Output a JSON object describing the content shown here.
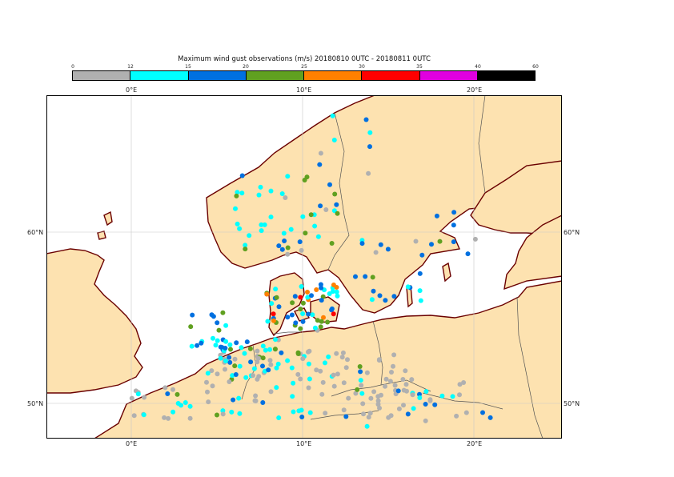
{
  "title": "Maximum wind gust observations (m/s) 20180810 0UTC - 20180811 0UTC",
  "legend": {
    "ticks": [
      "0",
      "12",
      "15",
      "20",
      "25",
      "30",
      "35",
      "40",
      "60"
    ],
    "colors": [
      "#b0b0b0",
      "#00ffff",
      "#0070e0",
      "#60a020",
      "#ff8000",
      "#ff0000",
      "#e000e0",
      "#000000"
    ]
  },
  "axes": {
    "top_labels": [
      "0°E",
      "10°E",
      "20°E"
    ],
    "bottom_labels": [
      "0°E",
      "10°E",
      "20°E"
    ],
    "left_labels": [
      "60°N",
      "50°N"
    ],
    "right_labels": [
      "60°N",
      "50°N"
    ]
  },
  "colors": {
    "land": "#fde2b0",
    "sea": "#ffffff",
    "coast": "#6a0000",
    "border": "#555555",
    "grid": "#c8c8c8"
  }
}
